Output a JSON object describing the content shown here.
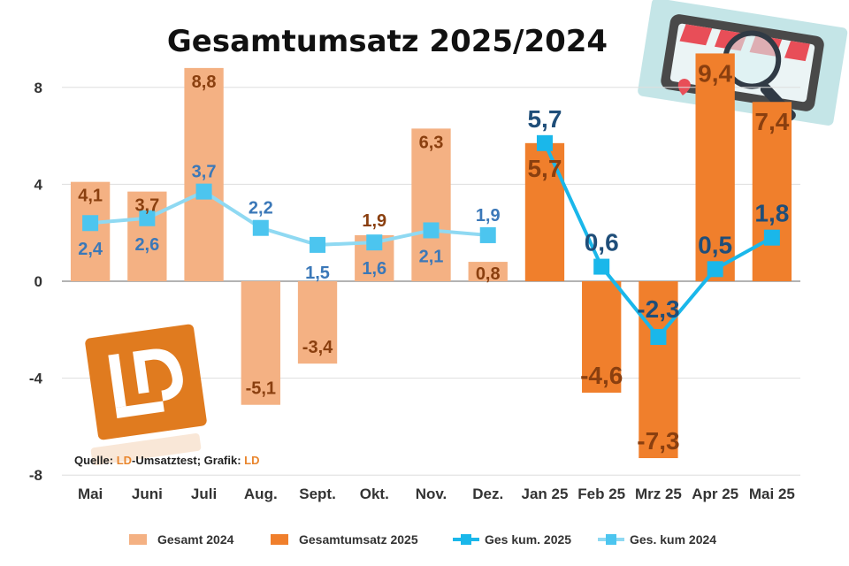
{
  "chart_data": {
    "type": "bar",
    "title": "Gesamtumsatz 2025/2024",
    "categories": [
      "Mai",
      "Juni",
      "Juli",
      "Aug.",
      "Sept.",
      "Okt.",
      "Nov.",
      "Dez.",
      "Jan 25",
      "Feb 25",
      "Mrz 25",
      "Apr 25",
      "Mai 25"
    ],
    "ylim": [
      -8,
      10
    ],
    "yticks": [
      -8,
      -4,
      0,
      4,
      8
    ],
    "ytick_labels": [
      "-8",
      "-4",
      "0",
      "4",
      "8"
    ],
    "grid": true,
    "legend_position": "bottom",
    "series": [
      {
        "name": "Gesamt 2024",
        "kind": "bar",
        "color": "#f4b183",
        "values": [
          4.1,
          3.7,
          8.8,
          -5.1,
          -3.4,
          1.9,
          6.3,
          0.8,
          null,
          null,
          null,
          null,
          null
        ],
        "labels": [
          "4,1",
          "3,7",
          "8,8",
          "-5,1",
          "-3,4",
          "1,9",
          "6,3",
          "0,8",
          "",
          "",
          "",
          "",
          ""
        ]
      },
      {
        "name": "Gesamtumsatz 2025",
        "kind": "bar",
        "color": "#f07f2c",
        "values": [
          null,
          null,
          null,
          null,
          null,
          null,
          null,
          null,
          5.7,
          -4.6,
          -7.3,
          9.4,
          7.4
        ],
        "labels": [
          "",
          "",
          "",
          "",
          "",
          "",
          "",
          "",
          "5,7",
          "-4,6",
          "-7,3",
          "9,4",
          "7,4"
        ]
      },
      {
        "name": "Ges kum. 2025",
        "kind": "line",
        "color": "#1ab7ea",
        "values": [
          null,
          null,
          null,
          null,
          null,
          null,
          null,
          null,
          5.7,
          0.6,
          -2.3,
          0.5,
          1.8
        ],
        "labels": [
          "",
          "",
          "",
          "",
          "",
          "",
          "",
          "",
          "5,7",
          "0,6",
          "-2,3",
          "0,5",
          "1,8"
        ]
      },
      {
        "name": "Ges. kum 2024",
        "kind": "line",
        "color": "#8fd9f2",
        "values": [
          2.4,
          2.6,
          3.7,
          2.2,
          1.5,
          1.6,
          2.1,
          1.9,
          null,
          null,
          null,
          null,
          null
        ],
        "labels": [
          "2,4",
          "2,6",
          "3,7",
          "2,2",
          "1,5",
          "1,6",
          "2,1",
          "1,9",
          "",
          "",
          "",
          "",
          ""
        ]
      }
    ]
  },
  "source_note": {
    "prefix": "Quelle: ",
    "ld1": "LD",
    "middle": "-Umsatztest; Grafik: ",
    "ld2": "LD"
  },
  "logo": {
    "text": "LD",
    "color": "#e07b1f"
  }
}
